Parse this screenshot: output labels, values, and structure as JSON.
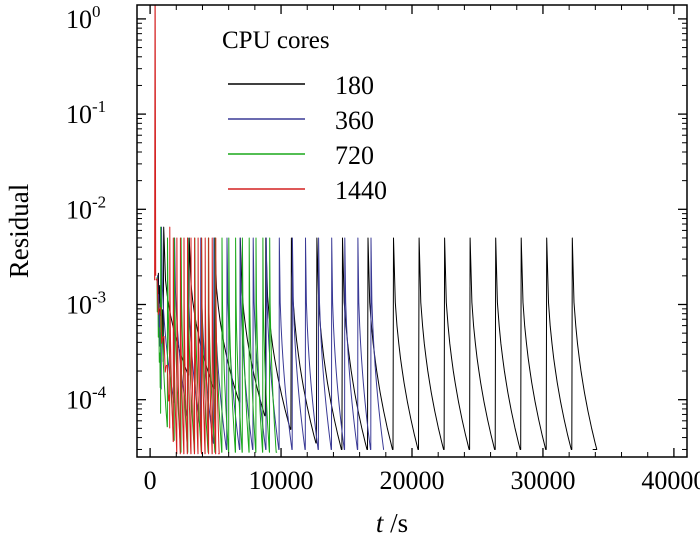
{
  "chart_data": {
    "type": "line",
    "title": "",
    "xlabel": {
      "var": "t",
      "unit": " /s"
    },
    "ylabel": "Residual",
    "xscale": "linear",
    "yscale": "log",
    "xlim": [
      -1000,
      41000
    ],
    "ylim": [
      2.5e-05,
      1.4
    ],
    "xticks": [
      "0",
      "10000",
      "20000",
      "30000",
      "40000"
    ],
    "xtick_values": [
      0,
      10000,
      20000,
      30000,
      40000
    ],
    "yticks": [
      {
        "base": "10",
        "exp": "0",
        "value": 1
      },
      {
        "base": "10",
        "exp": "-1",
        "value": 0.1
      },
      {
        "base": "10",
        "exp": "-2",
        "value": 0.01
      },
      {
        "base": "10",
        "exp": "-3",
        "value": 0.001
      },
      {
        "base": "10",
        "exp": "-4",
        "value": 0.0001
      }
    ],
    "legend_title": "CPU cores",
    "legend_position": "top",
    "series": [
      {
        "name": "180",
        "color": "#000000",
        "start": 600,
        "end": 33800,
        "first_spike_x": 1000,
        "period": 1950,
        "spike_count": 17,
        "peak": 0.005,
        "floor": 3e-05,
        "plateau": 0.00035
      },
      {
        "name": "360",
        "color": "#3a3a96",
        "start": 550,
        "end": 17800,
        "first_spike_x": 850,
        "period": 1000,
        "spike_count": 17,
        "peak": 0.005,
        "floor": 3e-05,
        "plateau": 0.00018
      },
      {
        "name": "720",
        "color": "#1aa81a",
        "start": 500,
        "end": 9700,
        "first_spike_x": 800,
        "period": 520,
        "spike_count": 17,
        "peak": 0.005,
        "floor": 2.8e-05,
        "plateau": 0.0001
      },
      {
        "name": "1440",
        "color": "#d42020",
        "start": 450,
        "end": 5200,
        "first_spike_x": 1500,
        "period": 270,
        "spike_count": 14,
        "peak": 0.005,
        "floor": 2.7e-05,
        "plateau": 7e-05
      }
    ]
  }
}
